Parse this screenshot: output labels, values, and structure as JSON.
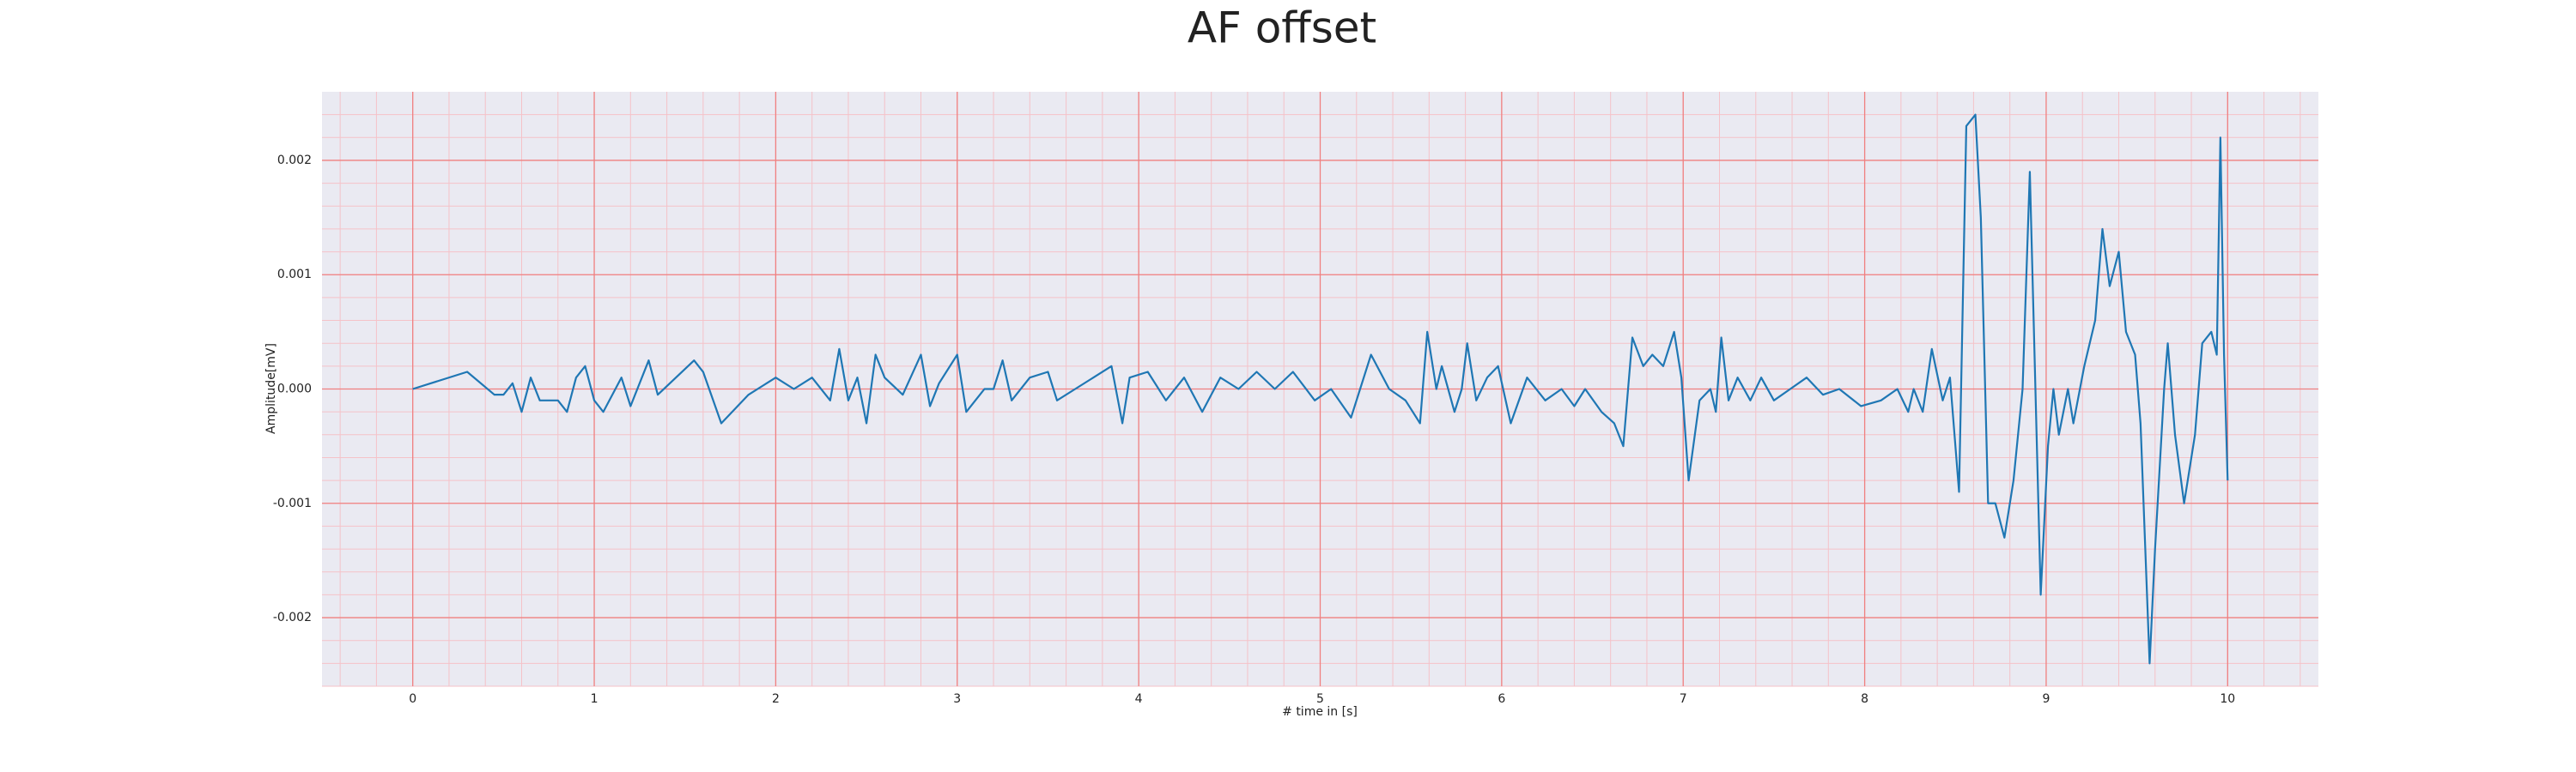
{
  "chart_data": {
    "type": "line",
    "title": "AF offset",
    "x_label": "# time in [s]",
    "y_label": "Amplitude[mV]",
    "x": [
      0,
      0.1,
      0.3,
      0.45,
      0.5,
      0.55,
      0.6,
      0.65,
      0.7,
      0.8,
      0.85,
      0.9,
      0.95,
      1.0,
      1.05,
      1.15,
      1.2,
      1.3,
      1.35,
      1.45,
      1.55,
      1.6,
      1.7,
      1.85,
      1.95,
      2.0,
      2.1,
      2.2,
      2.3,
      2.35,
      2.4,
      2.45,
      2.5,
      2.55,
      2.6,
      2.7,
      2.8,
      2.85,
      2.9,
      3.0,
      3.05,
      3.1,
      3.15,
      3.2,
      3.25,
      3.3,
      3.4,
      3.5,
      3.55,
      3.65,
      3.75,
      3.85,
      3.91,
      3.95,
      4.05,
      4.15,
      4.25,
      4.35,
      4.45,
      4.55,
      4.65,
      4.75,
      4.85,
      4.97,
      5.06,
      5.17,
      5.28,
      5.38,
      5.47,
      5.55,
      5.59,
      5.64,
      5.67,
      5.74,
      5.78,
      5.81,
      5.86,
      5.92,
      5.98,
      6.05,
      6.14,
      6.24,
      6.33,
      6.4,
      6.46,
      6.55,
      6.62,
      6.67,
      6.72,
      6.78,
      6.83,
      6.89,
      6.95,
      6.99,
      7.03,
      7.09,
      7.15,
      7.18,
      7.21,
      7.25,
      7.3,
      7.37,
      7.43,
      7.5,
      7.59,
      7.68,
      7.77,
      7.86,
      7.98,
      8.09,
      8.18,
      8.24,
      8.27,
      8.32,
      8.37,
      8.43,
      8.47,
      8.52,
      8.56,
      8.61,
      8.64,
      8.68,
      8.72,
      8.77,
      8.82,
      8.87,
      8.91,
      8.97,
      9.01,
      9.04,
      9.07,
      9.12,
      9.15,
      9.21,
      9.27,
      9.31,
      9.35,
      9.4,
      9.44,
      9.49,
      9.52,
      9.57,
      9.6,
      9.65,
      9.67,
      9.71,
      9.76,
      9.82,
      9.86,
      9.91,
      9.94,
      9.96,
      9.98,
      10.0
    ],
    "series": [
      {
        "name": "AF offset",
        "color": "#1f77b4",
        "values": [
          0,
          5e-05,
          0.00015,
          -5e-05,
          -5e-05,
          5e-05,
          -0.0002,
          0.0001,
          -0.0001,
          -0.0001,
          -0.0002,
          0.0001,
          0.0002,
          -0.0001,
          -0.0002,
          0.0001,
          -0.00015,
          0.00025,
          -5e-05,
          0.0001,
          0.00025,
          0.00015,
          -0.0003,
          -5e-05,
          5e-05,
          0.0001,
          0,
          0.0001,
          -0.0001,
          0.00035,
          -0.0001,
          0.0001,
          -0.0003,
          0.0003,
          0.0001,
          -5e-05,
          0.0003,
          -0.00015,
          5e-05,
          0.0003,
          -0.0002,
          -0.0001,
          0,
          0,
          0.00025,
          -0.0001,
          0.0001,
          0.00015,
          -0.0001,
          0,
          0.0001,
          0.0002,
          -0.0003,
          0.0001,
          0.00015,
          -0.0001,
          0.0001,
          -0.0002,
          0.0001,
          0,
          0.00015,
          0,
          0.00015,
          -0.0001,
          0,
          -0.00025,
          0.0003,
          0,
          -0.0001,
          -0.0003,
          0.0005,
          0,
          0.0002,
          -0.0002,
          0,
          0.0004,
          -0.0001,
          0.0001,
          0.0002,
          -0.0003,
          0.0001,
          -0.0001,
          0,
          -0.00015,
          0,
          -0.0002,
          -0.0003,
          -0.0005,
          0.00045,
          0.0002,
          0.0003,
          0.0002,
          0.0005,
          0.0001,
          -0.0008,
          -0.0001,
          0,
          -0.0002,
          0.00045,
          -0.0001,
          0.0001,
          -0.0001,
          0.0001,
          -0.0001,
          0,
          0.0001,
          -5e-05,
          0,
          -0.00015,
          -0.0001,
          0,
          -0.0002,
          0,
          -0.0002,
          0.00035,
          -0.0001,
          0.0001,
          -0.0009,
          0.0023,
          0.0024,
          0.0015,
          -0.001,
          -0.001,
          -0.0013,
          -0.0008,
          0,
          0.0019,
          -0.0018,
          -0.0005,
          0,
          -0.0004,
          0,
          -0.0003,
          0.0002,
          0.0006,
          0.0014,
          0.0009,
          0.0012,
          0.0005,
          0.0003,
          -0.0003,
          -0.0024,
          -0.0014,
          0,
          0.0004,
          -0.0004,
          -0.001,
          -0.0004,
          0.0004,
          0.0005,
          0.0003,
          0.0022,
          0.0003,
          -0.0008
        ]
      }
    ],
    "xlim": [
      -0.5,
      10.5
    ],
    "ylim": [
      -0.0026,
      0.0026
    ],
    "xticks": [
      0,
      1,
      2,
      3,
      4,
      5,
      6,
      7,
      8,
      9,
      10
    ],
    "yticks": [
      -0.002,
      -0.001,
      {
        "value": 0,
        "label": "0.000"
      },
      0.001,
      0.002
    ],
    "grid": true,
    "minor_grid": true,
    "background": "#eaeaf2",
    "grid_color": "#f08080",
    "minor_grid_color": "#f5c2c8"
  }
}
